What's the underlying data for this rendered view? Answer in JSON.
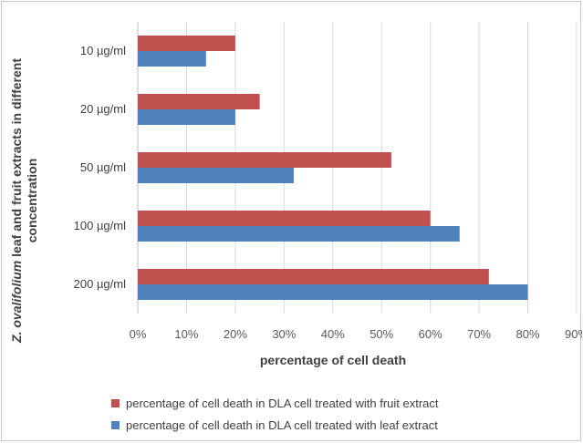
{
  "chart_data": {
    "type": "bar",
    "orientation": "horizontal",
    "categories": [
      "10 µg/ml",
      "20 µg/ml",
      "50 µg/ml",
      "100 µg/ml",
      "200 µg/ml"
    ],
    "series": [
      {
        "name": "percentage of cell death in DLA cell treated with fruit extract",
        "color": "#c0504d",
        "values": [
          20,
          25,
          52,
          60,
          72
        ]
      },
      {
        "name": "percentage of cell death in DLA cell treated with leaf extract",
        "color": "#4f81bd",
        "values": [
          14,
          20,
          32,
          66,
          80
        ]
      }
    ],
    "xlim": [
      0,
      90
    ],
    "xticks": [
      "0%",
      "10%",
      "20%",
      "30%",
      "40%",
      "50%",
      "60%",
      "70%",
      "80%",
      "90%"
    ],
    "xlabel": "percentage of cell death",
    "ylabel_parts": [
      {
        "text": "Z. ",
        "italic": true
      },
      {
        "text": "ovalifolium",
        "italic": true
      },
      {
        "text": " leaf and fruit extracts in different",
        "italic": false
      }
    ],
    "ylabel_line2": "concentration",
    "grid": true,
    "legend_position": "bottom"
  }
}
